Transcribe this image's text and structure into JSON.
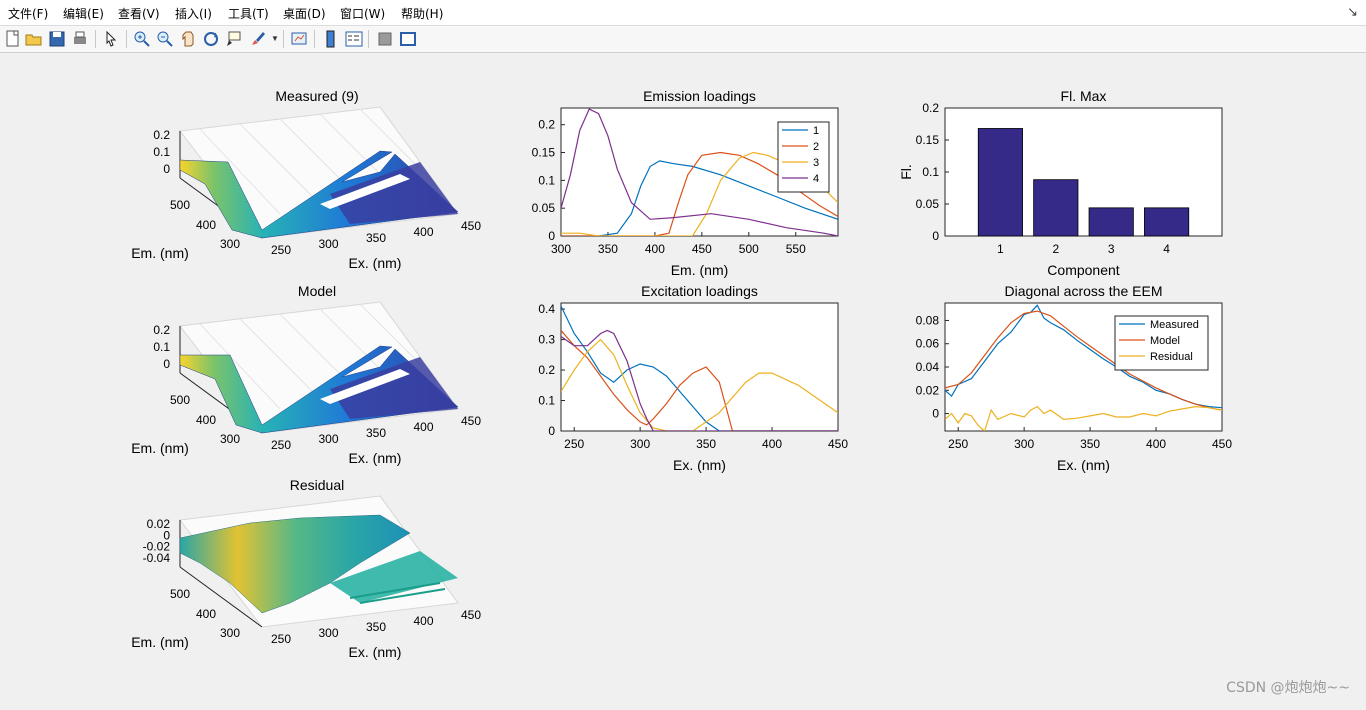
{
  "menu": [
    "文件(F)",
    "编辑(E)",
    "查看(V)",
    "插入(I)",
    "工具(T)",
    "桌面(D)",
    "窗口(W)",
    "帮助(H)"
  ],
  "toolbar_icons": [
    "new-figure-icon",
    "open-icon",
    "save-icon",
    "print-icon",
    "pointer-icon",
    "zoom-in-icon",
    "zoom-out-icon",
    "pan-icon",
    "rotate-3d-icon",
    "data-cursor-icon",
    "brush-icon",
    "link-plot-icon",
    "colorbar-icon",
    "legend-icon",
    "hide-plot-tools-icon",
    "show-plot-tools-icon"
  ],
  "watermark": "CSDN @炮炮炮~~",
  "colors": {
    "c1": "#0072bd",
    "c2": "#d95319",
    "c3": "#edb120",
    "c4": "#7e2f8e",
    "bar": "#352a87"
  },
  "chart_data": [
    {
      "id": "measured",
      "type": "surface3d",
      "title": "Measured (9)",
      "xlabel": "Ex. (nm)",
      "ylabel": "Em. (nm)",
      "xticks": [
        "250",
        "300",
        "350",
        "400",
        "450"
      ],
      "yticks": [
        "300",
        "400",
        "500"
      ],
      "zticks": [
        "0",
        "0.1",
        "0.2"
      ]
    },
    {
      "id": "emission",
      "type": "line",
      "title": "Emission loadings",
      "xlabel": "Em. (nm)",
      "xlim": [
        300,
        595
      ],
      "ylim": [
        0,
        0.23
      ],
      "xticks": [
        300,
        350,
        400,
        450,
        500,
        550
      ],
      "yticks": [
        0,
        0.05,
        0.1,
        0.15,
        0.2
      ],
      "legend": [
        "1",
        "2",
        "3",
        "4"
      ],
      "series": [
        {
          "name": "1",
          "x": [
            300,
            340,
            360,
            375,
            385,
            395,
            405,
            420,
            440,
            470,
            500,
            530,
            560,
            595
          ],
          "y": [
            0,
            0,
            0.005,
            0.04,
            0.09,
            0.125,
            0.135,
            0.13,
            0.125,
            0.11,
            0.09,
            0.07,
            0.05,
            0.03
          ]
        },
        {
          "name": "2",
          "x": [
            300,
            400,
            415,
            425,
            435,
            450,
            470,
            490,
            510,
            530,
            550,
            575,
            595
          ],
          "y": [
            0,
            0,
            0.005,
            0.06,
            0.11,
            0.145,
            0.15,
            0.145,
            0.13,
            0.11,
            0.085,
            0.055,
            0.035
          ]
        },
        {
          "name": "3",
          "x": [
            300,
            320,
            340,
            440,
            455,
            470,
            490,
            505,
            520,
            540,
            560,
            580,
            595
          ],
          "y": [
            0.005,
            0.005,
            0,
            0,
            0.04,
            0.1,
            0.14,
            0.15,
            0.145,
            0.13,
            0.11,
            0.085,
            0.06
          ]
        },
        {
          "name": "4",
          "x": [
            300,
            310,
            320,
            330,
            340,
            350,
            360,
            375,
            395,
            420,
            460,
            500,
            540,
            580,
            595
          ],
          "y": [
            0.05,
            0.11,
            0.19,
            0.228,
            0.22,
            0.18,
            0.12,
            0.06,
            0.03,
            0.033,
            0.04,
            0.03,
            0.015,
            0.005,
            0
          ]
        }
      ]
    },
    {
      "id": "flmax",
      "type": "bar",
      "title": "Fl. Max",
      "xlabel": "Component",
      "ylabel": "Fl.",
      "categories": [
        "1",
        "2",
        "3",
        "4"
      ],
      "values": [
        0.168,
        0.088,
        0.044,
        0.044
      ],
      "ylim": [
        0,
        0.2
      ],
      "yticks": [
        0,
        0.05,
        0.1,
        0.15,
        0.2
      ]
    },
    {
      "id": "model",
      "type": "surface3d",
      "title": "Model",
      "xlabel": "Ex. (nm)",
      "ylabel": "Em. (nm)",
      "xticks": [
        "250",
        "300",
        "350",
        "400",
        "450"
      ],
      "yticks": [
        "300",
        "400",
        "500"
      ],
      "zticks": [
        "0",
        "0.1",
        "0.2"
      ]
    },
    {
      "id": "excitation",
      "type": "line",
      "title": "Excitation loadings",
      "xlim": [
        240,
        450
      ],
      "ylim": [
        0,
        0.42
      ],
      "xlabel": "Ex. (nm)",
      "xticks": [
        250,
        300,
        350,
        400,
        450
      ],
      "yticks": [
        0,
        0.1,
        0.2,
        0.3,
        0.4
      ],
      "series": [
        {
          "name": "1",
          "x": [
            240,
            250,
            260,
            270,
            280,
            290,
            300,
            310,
            320,
            330,
            340,
            350,
            360,
            450
          ],
          "y": [
            0.41,
            0.32,
            0.26,
            0.19,
            0.16,
            0.2,
            0.22,
            0.21,
            0.18,
            0.13,
            0.08,
            0.03,
            0,
            0
          ]
        },
        {
          "name": "2",
          "x": [
            240,
            250,
            260,
            270,
            280,
            290,
            300,
            305,
            310,
            320,
            330,
            340,
            350,
            360,
            370,
            450
          ],
          "y": [
            0.33,
            0.28,
            0.24,
            0.18,
            0.12,
            0.07,
            0.03,
            0.02,
            0.04,
            0.09,
            0.15,
            0.19,
            0.21,
            0.16,
            0,
            0
          ]
        },
        {
          "name": "3",
          "x": [
            240,
            250,
            260,
            270,
            280,
            290,
            300,
            310,
            320,
            340,
            360,
            380,
            390,
            400,
            420,
            440,
            450
          ],
          "y": [
            0.13,
            0.2,
            0.26,
            0.3,
            0.25,
            0.15,
            0.06,
            0.01,
            0,
            0,
            0.06,
            0.16,
            0.19,
            0.19,
            0.15,
            0.09,
            0.06
          ]
        },
        {
          "name": "4",
          "x": [
            240,
            250,
            260,
            270,
            275,
            280,
            290,
            300,
            305,
            310,
            450
          ],
          "y": [
            0.31,
            0.28,
            0.28,
            0.32,
            0.33,
            0.32,
            0.23,
            0.09,
            0.04,
            0,
            0
          ]
        }
      ]
    },
    {
      "id": "diagonal",
      "type": "line",
      "title": "Diagonal across the EEM",
      "xlabel": "Ex. (nm)",
      "xlim": [
        240,
        450
      ],
      "ylim": [
        -0.015,
        0.095
      ],
      "xticks": [
        250,
        300,
        350,
        400,
        450
      ],
      "yticks": [
        0,
        0.02,
        0.04,
        0.06,
        0.08
      ],
      "legend": [
        "Measured",
        "Model",
        "Residual"
      ],
      "series": [
        {
          "name": "Measured",
          "x": [
            240,
            245,
            250,
            260,
            270,
            280,
            290,
            300,
            305,
            310,
            315,
            320,
            330,
            340,
            350,
            360,
            370,
            380,
            390,
            400,
            410,
            420,
            430,
            440,
            450
          ],
          "y": [
            0.02,
            0.015,
            0.025,
            0.03,
            0.045,
            0.06,
            0.07,
            0.085,
            0.087,
            0.093,
            0.082,
            0.078,
            0.072,
            0.063,
            0.055,
            0.047,
            0.04,
            0.032,
            0.027,
            0.02,
            0.017,
            0.012,
            0.008,
            0.006,
            0.005
          ]
        },
        {
          "name": "Model",
          "x": [
            240,
            250,
            260,
            270,
            280,
            290,
            300,
            310,
            320,
            330,
            340,
            350,
            360,
            370,
            380,
            390,
            400,
            410,
            420,
            430,
            440,
            450
          ],
          "y": [
            0.022,
            0.025,
            0.035,
            0.05,
            0.065,
            0.078,
            0.086,
            0.088,
            0.084,
            0.075,
            0.066,
            0.058,
            0.05,
            0.042,
            0.034,
            0.028,
            0.022,
            0.017,
            0.012,
            0.008,
            0.005,
            0.003
          ]
        },
        {
          "name": "Residual",
          "x": [
            240,
            245,
            250,
            255,
            260,
            265,
            270,
            275,
            280,
            290,
            300,
            305,
            310,
            315,
            320,
            330,
            340,
            350,
            360,
            370,
            380,
            390,
            400,
            410,
            420,
            430,
            440,
            450
          ],
          "y": [
            -0.005,
            0,
            -0.008,
            0,
            -0.002,
            -0.01,
            -0.015,
            0.003,
            -0.005,
            0,
            -0.003,
            0.003,
            0.006,
            0.0,
            0.003,
            -0.005,
            -0.004,
            -0.002,
            0,
            -0.003,
            -0.003,
            0,
            -0.002,
            0.002,
            0.004,
            0.006,
            0.005,
            0.003
          ]
        }
      ]
    },
    {
      "id": "residual",
      "type": "surface3d",
      "title": "Residual",
      "xlabel": "Ex. (nm)",
      "ylabel": "Em. (nm)",
      "xticks": [
        "250",
        "300",
        "350",
        "400",
        "450"
      ],
      "yticks": [
        "300",
        "400",
        "500"
      ],
      "zticks": [
        "-0.04",
        "-0.02",
        "0",
        "0.02"
      ]
    }
  ]
}
